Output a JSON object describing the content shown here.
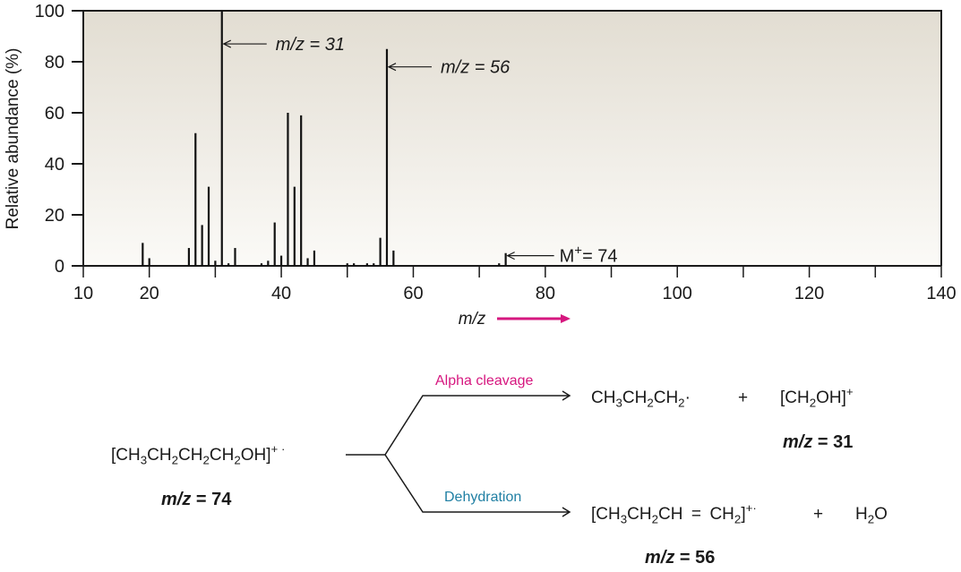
{
  "chart_data": {
    "type": "bar",
    "title": "",
    "xlabel": "m/z",
    "ylabel": "Relative abundance (%)",
    "xlim": [
      10,
      140
    ],
    "ylim": [
      0,
      100
    ],
    "x_ticks": [
      10,
      20,
      40,
      60,
      80,
      100,
      120,
      140
    ],
    "x_minor_ticks": [
      30,
      50,
      70,
      90,
      110,
      130
    ],
    "y_ticks": [
      0,
      20,
      40,
      60,
      80,
      100
    ],
    "grid": false,
    "peaks": [
      {
        "mz": 19,
        "abundance": 9
      },
      {
        "mz": 20,
        "abundance": 3
      },
      {
        "mz": 26,
        "abundance": 7
      },
      {
        "mz": 27,
        "abundance": 52
      },
      {
        "mz": 28,
        "abundance": 16
      },
      {
        "mz": 29,
        "abundance": 31
      },
      {
        "mz": 30,
        "abundance": 2
      },
      {
        "mz": 31,
        "abundance": 100
      },
      {
        "mz": 32,
        "abundance": 1
      },
      {
        "mz": 33,
        "abundance": 7
      },
      {
        "mz": 37,
        "abundance": 1
      },
      {
        "mz": 38,
        "abundance": 2
      },
      {
        "mz": 39,
        "abundance": 17
      },
      {
        "mz": 40,
        "abundance": 4
      },
      {
        "mz": 41,
        "abundance": 60
      },
      {
        "mz": 42,
        "abundance": 31
      },
      {
        "mz": 43,
        "abundance": 59
      },
      {
        "mz": 44,
        "abundance": 3
      },
      {
        "mz": 45,
        "abundance": 6
      },
      {
        "mz": 50,
        "abundance": 1
      },
      {
        "mz": 51,
        "abundance": 1
      },
      {
        "mz": 53,
        "abundance": 1
      },
      {
        "mz": 54,
        "abundance": 1
      },
      {
        "mz": 55,
        "abundance": 11
      },
      {
        "mz": 56,
        "abundance": 85
      },
      {
        "mz": 57,
        "abundance": 6
      },
      {
        "mz": 73,
        "abundance": 1
      },
      {
        "mz": 74,
        "abundance": 5
      }
    ],
    "annotations": [
      {
        "text": "m/z = 31",
        "points_to_mz": 31,
        "y": 87
      },
      {
        "text": "m/z = 56",
        "points_to_mz": 56,
        "y": 78
      },
      {
        "text": "M+ = 74",
        "points_to_mz": 74,
        "y": 4
      }
    ],
    "axis_arrow_color": "#d6177f"
  },
  "labels": {
    "ylabel": "Relative abundance (%)",
    "xlabel": "m/z",
    "ann31": "m/z = 31",
    "ann56": "m/z = 56",
    "annM_prefix": "M",
    "annM_sup": "+",
    "annM_suffix": "= 74"
  },
  "scheme": {
    "reactant_mz": "= 74",
    "alpha_label": "Alpha cleavage",
    "dehydration_label": "Dehydration",
    "alpha_product_mz": "= 31",
    "dehydration_product_mz": "= 56",
    "plus": "+",
    "alpha_color": "#d6177f",
    "dehydration_color": "#1f7fa3"
  }
}
